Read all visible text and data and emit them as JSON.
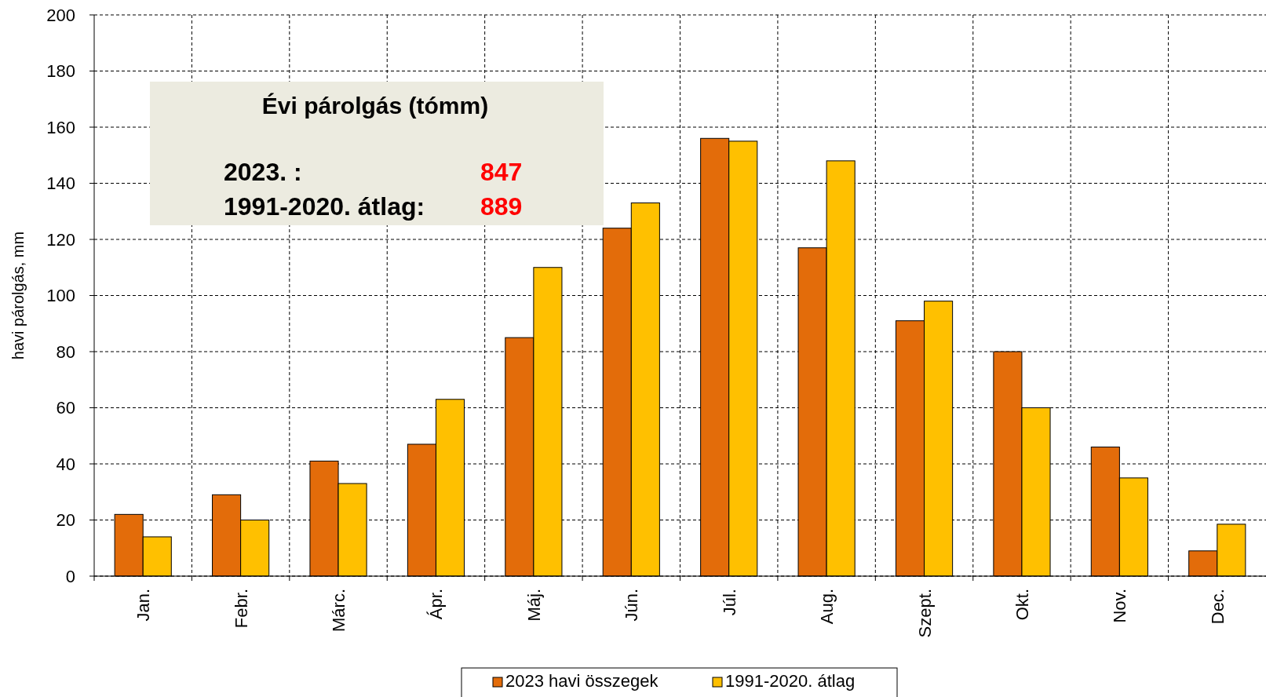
{
  "chart_data": {
    "type": "bar",
    "ylabel": "havi párolgás, mm",
    "categories": [
      "Jan.",
      "Febr.",
      "Márc.",
      "Ápr.",
      "Máj.",
      "Jún.",
      "Júl.",
      "Aug.",
      "Szept.",
      "Okt.",
      "Nov.",
      "Dec."
    ],
    "series": [
      {
        "name": "2023 havi összegek",
        "color": "#e36c0a",
        "values": [
          22,
          29,
          41,
          47,
          85,
          124,
          156,
          117,
          91,
          80,
          46,
          9
        ]
      },
      {
        "name": "1991-2020. átlag",
        "color": "#ffc000",
        "values": [
          14,
          20,
          33,
          63,
          110,
          133,
          155,
          148,
          98,
          60,
          35,
          18.5
        ]
      }
    ],
    "ylim": [
      0,
      200
    ],
    "yticks": [
      0,
      20,
      40,
      60,
      80,
      100,
      120,
      140,
      160,
      180,
      200
    ],
    "grid": true,
    "legend": "bottom",
    "annotations": [
      "Évi párolgás (tómm)",
      "2023. :",
      "847",
      "1991-2020. átlag:",
      "889"
    ]
  }
}
